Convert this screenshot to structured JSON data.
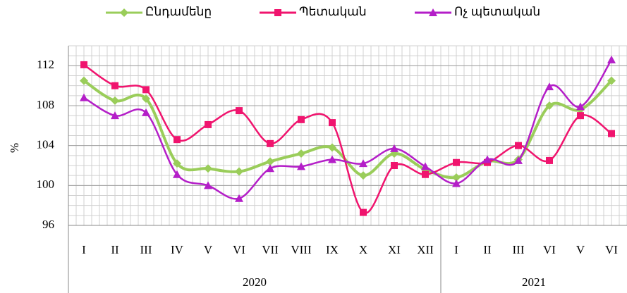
{
  "chart_data": {
    "type": "line",
    "ylabel": "%",
    "categories": [
      "I",
      "II",
      "III",
      "IV",
      "V",
      "VI",
      "VII",
      "VIII",
      "IX",
      "X",
      "XI",
      "XII",
      "I",
      "II",
      "III",
      "VI",
      "V",
      "VI"
    ],
    "x_groups": [
      {
        "label": "2020",
        "count": 12
      },
      {
        "label": "2021",
        "count": 6
      }
    ],
    "series": [
      {
        "name": "Ընդամենը",
        "color": "#9acd5a",
        "marker": "diamond",
        "values": [
          110.5,
          108.5,
          108.7,
          102.2,
          101.7,
          101.4,
          102.4,
          103.2,
          103.8,
          101.0,
          103.2,
          101.6,
          100.8,
          102.4,
          102.6,
          108.0,
          107.6,
          110.5
        ]
      },
      {
        "name": "Պետական",
        "color": "#f0146e",
        "marker": "square",
        "values": [
          112.1,
          110.0,
          109.6,
          104.6,
          106.1,
          107.5,
          104.2,
          106.6,
          106.3,
          97.3,
          102.0,
          101.1,
          102.3,
          102.3,
          104.0,
          102.5,
          107.0,
          105.2
        ]
      },
      {
        "name": "Ոչ պետական",
        "color": "#b41ec8",
        "marker": "triangle",
        "values": [
          108.8,
          107.0,
          107.3,
          101.1,
          100.0,
          98.7,
          101.7,
          101.9,
          102.6,
          102.2,
          103.7,
          101.9,
          100.2,
          102.6,
          102.5,
          109.9,
          107.9,
          112.6
        ]
      }
    ],
    "ylim": [
      96,
      114
    ],
    "yticks": [
      96,
      100,
      104,
      108,
      112
    ],
    "grid": true,
    "legend": "top"
  }
}
